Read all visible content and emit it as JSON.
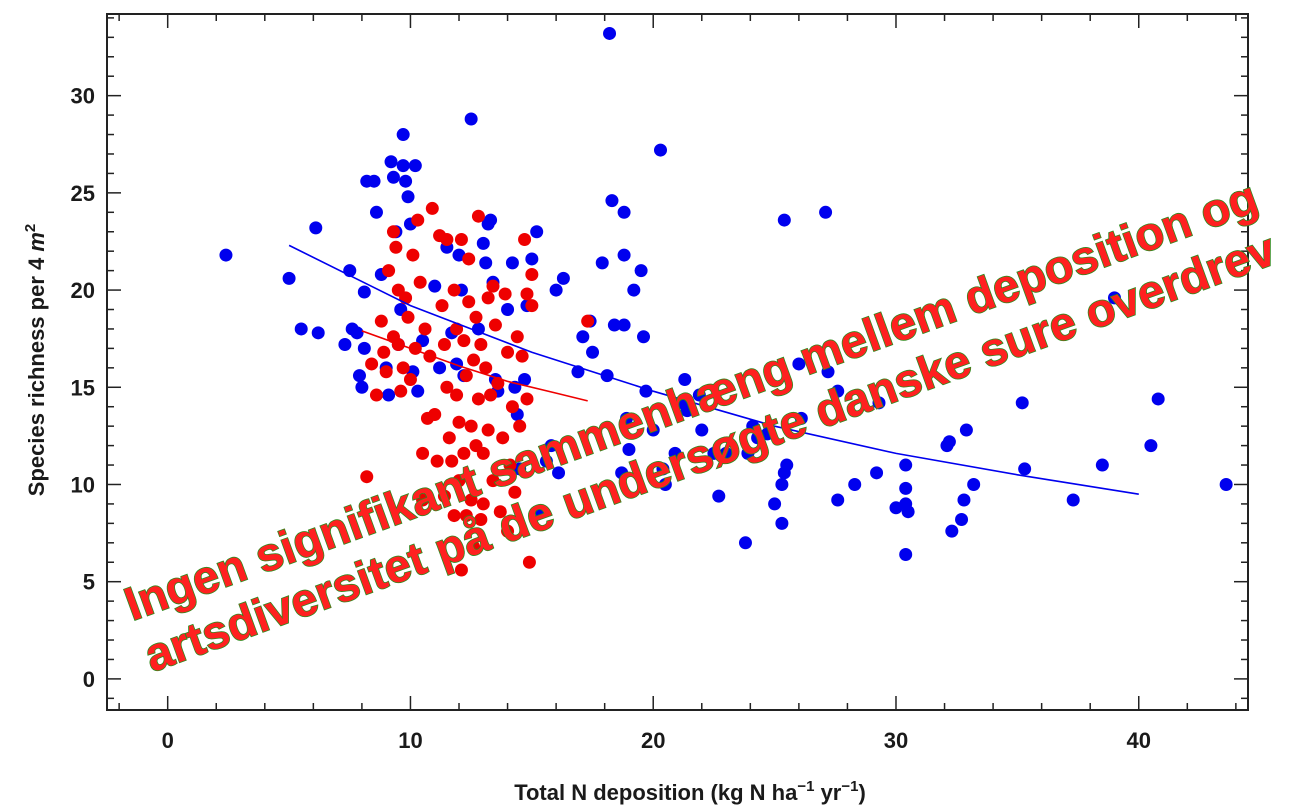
{
  "chart_data": {
    "type": "scatter",
    "xlabel": "Total N deposition (kg N ha",
    "xlabel_sup1": "−1",
    "xlabel_mid": " yr",
    "xlabel_sup2": "−1",
    "xlabel_end": ")",
    "ylabel": "Species richness per 4 ",
    "ylabel_unit": "m",
    "ylabel_sup": "2",
    "xlim": [
      -2.5,
      44.5
    ],
    "ylim": [
      -1.6,
      34.2
    ],
    "x_ticks": [
      0,
      10,
      20,
      30,
      40
    ],
    "y_ticks": [
      0,
      5,
      10,
      15,
      20,
      25,
      30
    ],
    "x_tick_labels": [
      "0",
      "10",
      "20",
      "30",
      "40"
    ],
    "y_tick_labels": [
      "0",
      "5",
      "10",
      "15",
      "20",
      "25",
      "30"
    ],
    "grid": false,
    "series": [
      {
        "color": "#0000ee",
        "points": [
          [
            2.4,
            21.8
          ],
          [
            5.0,
            20.6
          ],
          [
            5.5,
            18.0
          ],
          [
            6.1,
            23.2
          ],
          [
            6.2,
            17.8
          ],
          [
            7.3,
            17.2
          ],
          [
            7.5,
            21.0
          ],
          [
            7.6,
            18.0
          ],
          [
            7.8,
            17.8
          ],
          [
            7.9,
            15.6
          ],
          [
            8.0,
            15.0
          ],
          [
            8.1,
            19.9
          ],
          [
            8.1,
            17.0
          ],
          [
            8.2,
            25.6
          ],
          [
            8.5,
            25.6
          ],
          [
            8.6,
            24.0
          ],
          [
            8.8,
            20.8
          ],
          [
            9.0,
            16.0
          ],
          [
            9.1,
            14.6
          ],
          [
            9.2,
            26.6
          ],
          [
            9.3,
            25.8
          ],
          [
            9.4,
            23.0
          ],
          [
            9.5,
            17.2
          ],
          [
            9.6,
            19.0
          ],
          [
            9.7,
            28.0
          ],
          [
            9.7,
            26.4
          ],
          [
            9.8,
            25.6
          ],
          [
            9.9,
            24.8
          ],
          [
            10.0,
            23.4
          ],
          [
            10.1,
            15.8
          ],
          [
            10.2,
            26.4
          ],
          [
            10.3,
            14.8
          ],
          [
            10.5,
            17.4
          ],
          [
            11.0,
            20.2
          ],
          [
            11.2,
            16.0
          ],
          [
            11.5,
            22.2
          ],
          [
            11.7,
            17.8
          ],
          [
            11.9,
            16.2
          ],
          [
            12.0,
            21.8
          ],
          [
            12.1,
            20.0
          ],
          [
            12.2,
            15.6
          ],
          [
            12.5,
            28.8
          ],
          [
            12.8,
            18.0
          ],
          [
            13.0,
            22.4
          ],
          [
            13.1,
            21.4
          ],
          [
            13.2,
            23.4
          ],
          [
            13.3,
            23.6
          ],
          [
            13.4,
            20.4
          ],
          [
            13.5,
            15.4
          ],
          [
            13.6,
            14.8
          ],
          [
            14.0,
            19.0
          ],
          [
            14.2,
            21.4
          ],
          [
            14.3,
            15.0
          ],
          [
            14.4,
            13.6
          ],
          [
            14.5,
            10.8
          ],
          [
            14.7,
            15.4
          ],
          [
            14.8,
            19.2
          ],
          [
            15.0,
            21.6
          ],
          [
            15.2,
            23.0
          ],
          [
            15.4,
            8.6
          ],
          [
            15.6,
            11.2
          ],
          [
            15.8,
            12.0
          ],
          [
            16.0,
            20.0
          ],
          [
            16.1,
            10.6
          ],
          [
            16.3,
            20.6
          ],
          [
            16.9,
            15.8
          ],
          [
            17.1,
            17.6
          ],
          [
            17.4,
            18.4
          ],
          [
            17.5,
            16.8
          ],
          [
            17.9,
            21.4
          ],
          [
            18.1,
            15.6
          ],
          [
            18.2,
            33.2
          ],
          [
            18.3,
            24.6
          ],
          [
            18.4,
            18.2
          ],
          [
            18.7,
            10.6
          ],
          [
            18.8,
            24.0
          ],
          [
            18.8,
            21.8
          ],
          [
            18.8,
            18.2
          ],
          [
            18.9,
            13.4
          ],
          [
            19.0,
            11.8
          ],
          [
            19.2,
            20.0
          ],
          [
            19.5,
            21.0
          ],
          [
            19.6,
            17.6
          ],
          [
            19.7,
            14.8
          ],
          [
            20.0,
            12.8
          ],
          [
            20.3,
            27.2
          ],
          [
            20.4,
            10.8
          ],
          [
            20.5,
            10.0
          ],
          [
            20.9,
            11.6
          ],
          [
            21.2,
            14.2
          ],
          [
            21.3,
            15.4
          ],
          [
            21.4,
            13.8
          ],
          [
            21.9,
            14.6
          ],
          [
            22.0,
            12.8
          ],
          [
            22.5,
            11.6
          ],
          [
            22.7,
            9.4
          ],
          [
            23.0,
            11.6
          ],
          [
            23.8,
            7.0
          ],
          [
            23.9,
            11.6
          ],
          [
            24.1,
            13.0
          ],
          [
            24.3,
            12.4
          ],
          [
            24.7,
            12.6
          ],
          [
            25.0,
            9.0
          ],
          [
            25.3,
            8.0
          ],
          [
            25.3,
            10.0
          ],
          [
            25.4,
            10.6
          ],
          [
            25.5,
            11.0
          ],
          [
            25.4,
            23.6
          ],
          [
            26.0,
            16.2
          ],
          [
            26.1,
            13.4
          ],
          [
            27.1,
            24.0
          ],
          [
            27.2,
            15.8
          ],
          [
            27.6,
            14.8
          ],
          [
            27.6,
            9.2
          ],
          [
            28.3,
            10.0
          ],
          [
            29.2,
            10.6
          ],
          [
            29.3,
            14.2
          ],
          [
            30.0,
            8.8
          ],
          [
            30.4,
            11.0
          ],
          [
            30.4,
            9.8
          ],
          [
            30.4,
            9.0
          ],
          [
            30.5,
            8.6
          ],
          [
            30.4,
            6.4
          ],
          [
            32.1,
            12.0
          ],
          [
            32.2,
            12.2
          ],
          [
            32.3,
            7.6
          ],
          [
            32.7,
            8.2
          ],
          [
            32.8,
            9.2
          ],
          [
            32.9,
            12.8
          ],
          [
            33.2,
            10.0
          ],
          [
            35.2,
            14.2
          ],
          [
            35.3,
            10.8
          ],
          [
            37.3,
            9.2
          ],
          [
            38.5,
            11.0
          ],
          [
            39.0,
            19.6
          ],
          [
            40.5,
            12.0
          ],
          [
            40.8,
            14.4
          ],
          [
            43.6,
            10.0
          ]
        ],
        "fit": [
          [
            5,
            22.3
          ],
          [
            10,
            19.2
          ],
          [
            15,
            16.8
          ],
          [
            20,
            14.8
          ],
          [
            25,
            13.0
          ],
          [
            30,
            11.6
          ],
          [
            35,
            10.5
          ],
          [
            40,
            9.5
          ]
        ]
      },
      {
        "color": "#ee0000",
        "points": [
          [
            8.2,
            10.4
          ],
          [
            8.4,
            16.2
          ],
          [
            8.6,
            14.6
          ],
          [
            8.8,
            18.4
          ],
          [
            8.9,
            16.8
          ],
          [
            9.0,
            15.8
          ],
          [
            9.1,
            21.0
          ],
          [
            9.3,
            23.0
          ],
          [
            9.3,
            17.6
          ],
          [
            9.4,
            22.2
          ],
          [
            9.5,
            20.0
          ],
          [
            9.5,
            17.2
          ],
          [
            9.6,
            14.8
          ],
          [
            9.7,
            16.0
          ],
          [
            9.8,
            19.6
          ],
          [
            9.9,
            18.6
          ],
          [
            10.0,
            15.4
          ],
          [
            10.1,
            21.8
          ],
          [
            10.2,
            17.0
          ],
          [
            10.3,
            23.6
          ],
          [
            10.4,
            20.4
          ],
          [
            10.5,
            11.6
          ],
          [
            10.5,
            9.2
          ],
          [
            10.6,
            18.0
          ],
          [
            10.7,
            13.4
          ],
          [
            10.8,
            16.6
          ],
          [
            10.9,
            24.2
          ],
          [
            11.0,
            13.6
          ],
          [
            11.1,
            11.2
          ],
          [
            11.2,
            22.8
          ],
          [
            11.3,
            19.2
          ],
          [
            11.4,
            17.2
          ],
          [
            11.4,
            9.4
          ],
          [
            11.5,
            22.6
          ],
          [
            11.5,
            15.0
          ],
          [
            11.6,
            12.4
          ],
          [
            11.7,
            11.2
          ],
          [
            11.8,
            20.0
          ],
          [
            11.8,
            8.4
          ],
          [
            11.9,
            18.0
          ],
          [
            11.9,
            14.6
          ],
          [
            12.0,
            13.2
          ],
          [
            12.0,
            10.2
          ],
          [
            12.1,
            22.6
          ],
          [
            12.1,
            5.6
          ],
          [
            12.2,
            17.4
          ],
          [
            12.2,
            11.6
          ],
          [
            12.3,
            15.6
          ],
          [
            12.3,
            8.4
          ],
          [
            12.4,
            21.6
          ],
          [
            12.4,
            19.4
          ],
          [
            12.5,
            13.0
          ],
          [
            12.5,
            9.2
          ],
          [
            12.6,
            16.4
          ],
          [
            12.6,
            6.8
          ],
          [
            12.7,
            18.6
          ],
          [
            12.7,
            12.0
          ],
          [
            12.8,
            23.8
          ],
          [
            12.8,
            14.4
          ],
          [
            12.9,
            17.2
          ],
          [
            12.9,
            8.2
          ],
          [
            13.0,
            11.6
          ],
          [
            13.0,
            9.0
          ],
          [
            13.1,
            16.0
          ],
          [
            13.2,
            19.6
          ],
          [
            13.2,
            12.8
          ],
          [
            13.3,
            14.6
          ],
          [
            13.4,
            20.2
          ],
          [
            13.4,
            10.2
          ],
          [
            13.5,
            18.2
          ],
          [
            13.6,
            15.2
          ],
          [
            13.7,
            8.6
          ],
          [
            13.8,
            12.4
          ],
          [
            13.9,
            19.8
          ],
          [
            14.0,
            16.8
          ],
          [
            14.0,
            7.6
          ],
          [
            14.1,
            11.0
          ],
          [
            14.2,
            14.0
          ],
          [
            14.3,
            9.6
          ],
          [
            14.4,
            17.6
          ],
          [
            14.5,
            13.0
          ],
          [
            14.6,
            16.6
          ],
          [
            14.7,
            22.6
          ],
          [
            14.8,
            19.8
          ],
          [
            14.8,
            14.4
          ],
          [
            14.9,
            6.0
          ],
          [
            15.0,
            20.8
          ],
          [
            15.0,
            19.2
          ],
          [
            17.3,
            18.4
          ]
        ],
        "fit": [
          [
            8,
            17.9
          ],
          [
            10,
            17.0
          ],
          [
            12,
            16.1
          ],
          [
            14,
            15.3
          ],
          [
            16,
            14.7
          ],
          [
            17.3,
            14.3
          ]
        ]
      }
    ],
    "annotation_lines": [
      "Ingen signifikant sammenhæng mellem deposition og",
      "artsdiversitet på de undersøgte danske sure overdrev"
    ]
  }
}
